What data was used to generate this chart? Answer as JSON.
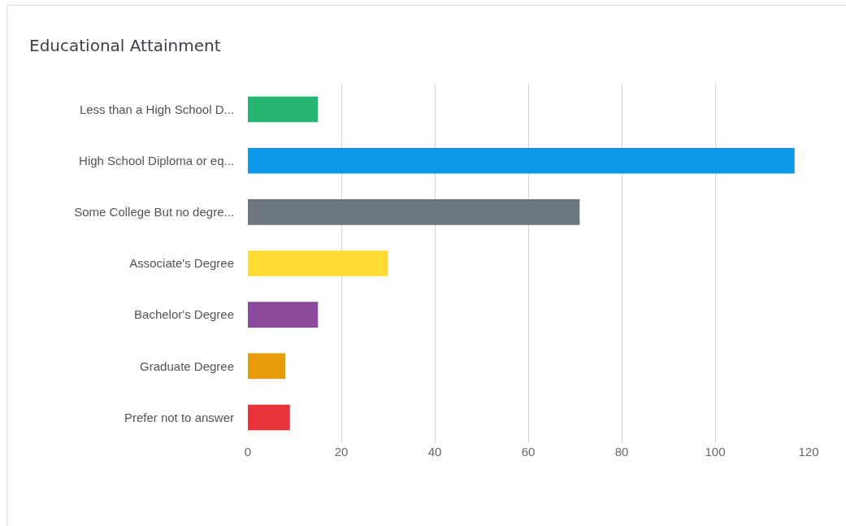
{
  "chart_data": {
    "type": "bar",
    "orientation": "horizontal",
    "title": "Educational Attainment",
    "categories": [
      "Less than a High School D...",
      "High School Diploma or eq...",
      "Some College But no degre...",
      "Associate's Degree",
      "Bachelor's Degree",
      "Graduate Degree",
      "Prefer not to answer"
    ],
    "values": [
      15,
      117,
      71,
      30,
      15,
      8,
      9
    ],
    "colors": [
      "#27b574",
      "#0e98e8",
      "#6c7780",
      "#fedc33",
      "#8c4a9c",
      "#e89c0c",
      "#e8333a"
    ],
    "xlim": [
      0,
      120
    ],
    "xticks": [
      0,
      20,
      40,
      60,
      80,
      100,
      120
    ],
    "grid": "x"
  }
}
